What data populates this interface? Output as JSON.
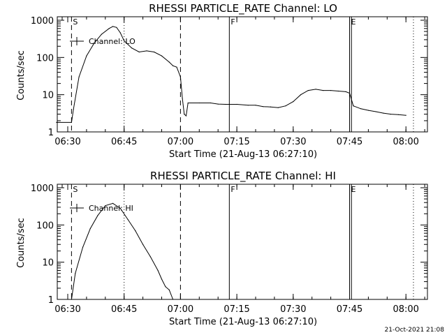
{
  "chart_data": [
    {
      "type": "line",
      "title": "RHESSI PARTICLE_RATE Channel: LO",
      "xlabel": "Start Time (21-Aug-13 06:27:10)",
      "ylabel": "Counts/sec",
      "y_scale": "log",
      "ylim": [
        1,
        1000
      ],
      "x_tick_labels": [
        "06:30",
        "06:45",
        "07:00",
        "07:15",
        "07:30",
        "07:45",
        "08:00"
      ],
      "y_tick_labels": [
        "1",
        "10",
        "100",
        "1000"
      ],
      "legend": {
        "label": "Channel: LO",
        "position": "top-left"
      },
      "markers": [
        {
          "label": "S",
          "time": "06:31",
          "style": "dashed"
        },
        {
          "label": "F",
          "time": "07:13",
          "style": "solid"
        },
        {
          "label": "E",
          "time": "07:45",
          "style": "solid"
        }
      ],
      "series": [
        {
          "name": "Channel: LO",
          "x": [
            "06:27",
            "06:31",
            "06:31:30",
            "06:33",
            "06:35",
            "06:37",
            "06:39",
            "06:41",
            "06:42",
            "06:43",
            "06:44",
            "06:45",
            "06:47",
            "06:49",
            "06:51",
            "06:53",
            "06:55",
            "06:57",
            "06:58",
            "06:59",
            "07:00",
            "07:00:30",
            "07:01",
            "07:01:30",
            "07:02",
            "07:05",
            "07:08",
            "07:10",
            "07:12",
            "07:15",
            "07:18",
            "07:20",
            "07:22",
            "07:24",
            "07:26",
            "07:28",
            "07:30",
            "07:32",
            "07:34",
            "07:36",
            "07:38",
            "07:40",
            "07:42",
            "07:44",
            "07:45",
            "07:46",
            "07:48",
            "07:50",
            "07:52",
            "07:54",
            "07:56",
            "07:58",
            "08:00"
          ],
          "y": [
            1.8,
            1.8,
            4,
            30,
            110,
            240,
            420,
            600,
            680,
            640,
            460,
            280,
            180,
            140,
            150,
            140,
            110,
            75,
            60,
            55,
            30,
            8,
            3,
            2.7,
            6,
            6,
            6,
            5.6,
            5.5,
            5.5,
            5.2,
            5.2,
            4.8,
            4.7,
            4.5,
            5,
            6.5,
            10,
            13,
            14,
            13,
            13,
            12.5,
            12,
            11,
            5,
            4.2,
            3.8,
            3.5,
            3.2,
            3,
            2.9,
            2.8
          ]
        }
      ]
    },
    {
      "type": "line",
      "title": "RHESSI PARTICLE_RATE Channel: HI",
      "xlabel": "Start Time (21-Aug-13 06:27:10)",
      "ylabel": "Counts/sec",
      "y_scale": "log",
      "ylim": [
        1,
        1000
      ],
      "x_tick_labels": [
        "06:30",
        "06:45",
        "07:00",
        "07:15",
        "07:30",
        "07:45",
        "08:00"
      ],
      "y_tick_labels": [
        "1",
        "10",
        "100",
        "1000"
      ],
      "legend": {
        "label": "Channel: HI",
        "position": "top-left"
      },
      "markers": [
        {
          "label": "S",
          "time": "06:31",
          "style": "dashed"
        },
        {
          "label": "F",
          "time": "07:13",
          "style": "solid"
        },
        {
          "label": "E",
          "time": "07:45",
          "style": "solid"
        }
      ],
      "series": [
        {
          "name": "Channel: HI",
          "x": [
            "06:31",
            "06:32",
            "06:34",
            "06:36",
            "06:38",
            "06:40",
            "06:42",
            "06:44",
            "06:46",
            "06:48",
            "06:50",
            "06:52",
            "06:54",
            "06:55",
            "06:56",
            "06:57",
            "06:58"
          ],
          "y": [
            1,
            5,
            25,
            80,
            180,
            330,
            380,
            280,
            140,
            70,
            30,
            14,
            6,
            3.5,
            2.2,
            1.8,
            1
          ]
        }
      ]
    }
  ],
  "footer": {
    "timestamp": "21-Oct-2021 21:08"
  }
}
